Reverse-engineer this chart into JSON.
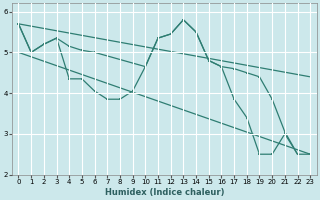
{
  "xlabel": "Humidex (Indice chaleur)",
  "xlim": [
    -0.5,
    23.5
  ],
  "ylim": [
    2,
    6.2
  ],
  "yticks": [
    2,
    3,
    4,
    5,
    6
  ],
  "xticks": [
    0,
    1,
    2,
    3,
    4,
    5,
    6,
    7,
    8,
    9,
    10,
    11,
    12,
    13,
    14,
    15,
    16,
    17,
    18,
    19,
    20,
    21,
    22,
    23
  ],
  "bg_color": "#cce8eb",
  "grid_color": "#ffffff",
  "line_color": "#2e7d72",
  "series": [
    {
      "x": [
        0,
        1,
        2,
        3,
        4,
        5,
        6,
        7,
        8,
        9,
        10,
        11,
        12,
        13,
        14,
        15,
        16,
        17,
        18,
        19,
        20,
        21,
        22
      ],
      "y": [
        5.7,
        5.0,
        5.2,
        5.35,
        4.35,
        4.35,
        4.05,
        3.85,
        3.85,
        4.05,
        4.65,
        5.35,
        5.45,
        5.8,
        5.5,
        4.8,
        4.65,
        3.85,
        3.4,
        2.5,
        2.5,
        3.0,
        2.5
      ]
    },
    {
      "x": [
        0,
        23
      ],
      "y": [
        5.0,
        2.5
      ]
    },
    {
      "x": [
        0,
        23
      ],
      "y": [
        5.7,
        4.4
      ]
    },
    {
      "comment": "Line4: starts at (0,5.7), goes to (1,5.0), (2,5.2), (3,5.35), (4,5.15), (5,5.05), (6,5.0), then big jump to (10,4.65), (11,5.35), (12,5.45), (13,5.8), (14,5.5), (15,4.8), (16,4.65), (17,4.6), (18,4.5), (19,4.4), (20,3.85), (21,3.05), (22,2.5), (23,2.5)",
      "x": [
        0,
        1,
        2,
        3,
        4,
        5,
        6,
        10,
        11,
        12,
        13,
        14,
        15,
        16,
        17,
        18,
        19,
        20,
        21,
        22,
        23
      ],
      "y": [
        5.7,
        5.0,
        5.2,
        5.35,
        5.15,
        5.05,
        5.0,
        4.65,
        5.35,
        5.45,
        5.8,
        5.5,
        4.8,
        4.65,
        4.6,
        4.5,
        4.4,
        3.85,
        3.05,
        2.5,
        2.5
      ]
    }
  ],
  "figsize": [
    3.2,
    2.0
  ],
  "dpi": 100
}
